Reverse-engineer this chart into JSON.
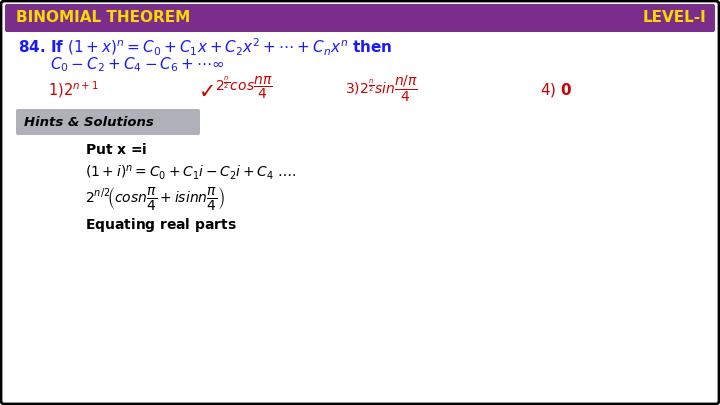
{
  "bg_color": "#ffffff",
  "border_color": "#000000",
  "header_bg": "#7B2D8B",
  "header_text_left": "BINOMIAL THEOREM",
  "header_text_right": "LEVEL-I",
  "header_text_color": "#FFD700",
  "question_color": "#1a1aff",
  "hints_bg": "#b0b0b8",
  "hints_text": "Hints & Solutions",
  "answer_color": "#cc0000",
  "black_color": "#000000",
  "fig_w": 7.2,
  "fig_h": 4.05,
  "dpi": 100
}
